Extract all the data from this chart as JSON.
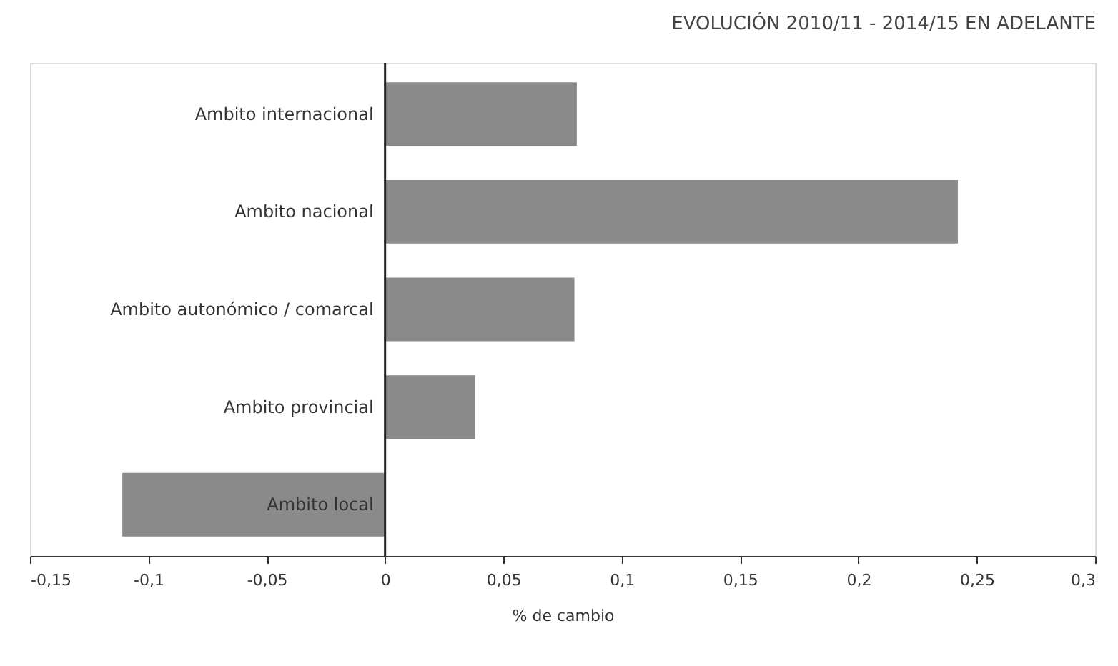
{
  "chart_data": {
    "type": "bar",
    "orientation": "horizontal",
    "title": "EVOLUCIÓN 2010/11 - 2014/15 EN ADELANTE",
    "xlabel": "% de cambio",
    "categories": [
      "Ambito internacional",
      "Ambito nacional",
      "Ambito autonómico / comarcal",
      "Ambito provincial",
      "Ambito local"
    ],
    "values": [
      0.081,
      0.242,
      0.08,
      0.038,
      -0.111
    ],
    "color": "#8a8a8a",
    "xlim": [
      -0.15,
      0.3
    ],
    "xticks": [
      {
        "value": -0.15,
        "label": "-0,15"
      },
      {
        "value": -0.1,
        "label": "-0,1"
      },
      {
        "value": -0.05,
        "label": "-0,05"
      },
      0,
      {
        "value": 0.05,
        "label": "0,05"
      },
      {
        "value": 0.1,
        "label": "0,1"
      },
      {
        "value": 0.15,
        "label": "0,15"
      },
      {
        "value": 0.2,
        "label": "0,2"
      },
      {
        "value": 0.25,
        "label": "0,25"
      },
      {
        "value": 0.3,
        "label": "0,3"
      }
    ],
    "grid": false
  }
}
